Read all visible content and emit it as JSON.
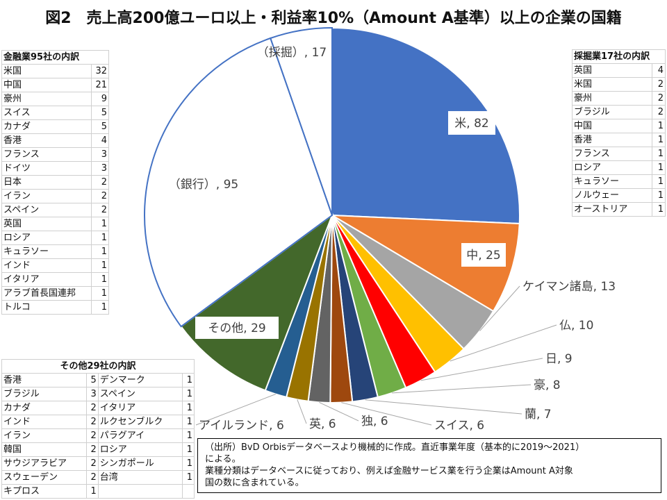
{
  "title": "図2　売上高200億ユーロ以上・利益率10%（Amount A基準）以上の企業の国籍",
  "chart_data": {
    "type": "pie",
    "slices": [
      {
        "label": "米",
        "value": 82,
        "color": "#4472C4"
      },
      {
        "label": "中",
        "value": 25,
        "color": "#ED7D31"
      },
      {
        "label": "ケイマン諸島",
        "value": 13,
        "color": "#A5A5A5"
      },
      {
        "label": "仏",
        "value": 10,
        "color": "#FFC000"
      },
      {
        "label": "日",
        "value": 9,
        "color": "#FF0000"
      },
      {
        "label": "豪",
        "value": 8,
        "color": "#70AD47"
      },
      {
        "label": "蘭",
        "value": 7,
        "color": "#264478"
      },
      {
        "label": "スイス",
        "value": 6,
        "color": "#9E480E"
      },
      {
        "label": "独",
        "value": 6,
        "color": "#636363"
      },
      {
        "label": "英",
        "value": 6,
        "color": "#997300"
      },
      {
        "label": "アイルランド",
        "value": 6,
        "color": "#255E91"
      },
      {
        "label": "その他",
        "value": 29,
        "color": "#43682B"
      },
      {
        "label": "（銀行）",
        "value": 95,
        "color": "#FFFFFF"
      },
      {
        "label": "（採掘）",
        "value": 17,
        "color": "#FFFFFF"
      }
    ]
  },
  "finance_table": {
    "header": "金融業95社の内訳",
    "rows": [
      [
        "米国",
        "32"
      ],
      [
        "中国",
        "21"
      ],
      [
        "豪州",
        "9"
      ],
      [
        "スイス",
        "5"
      ],
      [
        "カナダ",
        "5"
      ],
      [
        "香港",
        "4"
      ],
      [
        "フランス",
        "3"
      ],
      [
        "ドイツ",
        "3"
      ],
      [
        "日本",
        "2"
      ],
      [
        "イラン",
        "2"
      ],
      [
        "スペイン",
        "2"
      ],
      [
        "英国",
        "1"
      ],
      [
        "ロシア",
        "1"
      ],
      [
        "キュラソー",
        "1"
      ],
      [
        "インド",
        "1"
      ],
      [
        "イタリア",
        "1"
      ],
      [
        "アラブ首長国連邦",
        "1"
      ],
      [
        "トルコ",
        "1"
      ]
    ]
  },
  "mining_table": {
    "header": "採掘業17社の内訳",
    "rows": [
      [
        "英国",
        "4"
      ],
      [
        "米国",
        "2"
      ],
      [
        "豪州",
        "2"
      ],
      [
        "ブラジル",
        "2"
      ],
      [
        "中国",
        "1"
      ],
      [
        "香港",
        "1"
      ],
      [
        "フランス",
        "1"
      ],
      [
        "ロシア",
        "1"
      ],
      [
        "キュラソー",
        "1"
      ],
      [
        "ノルウェー",
        "1"
      ],
      [
        "オーストリア",
        "1"
      ]
    ]
  },
  "other_table": {
    "header": "その他29社の内訳",
    "rows": [
      [
        "香港",
        "5",
        "デンマーク",
        "1"
      ],
      [
        "ブラジル",
        "3",
        "スペイン",
        "1"
      ],
      [
        "カナダ",
        "2",
        "イタリア",
        "1"
      ],
      [
        "インド",
        "2",
        "ルクセンブルク",
        "1"
      ],
      [
        "イラン",
        "2",
        "パラグアイ",
        "1"
      ],
      [
        "韓国",
        "2",
        "ロシア",
        "1"
      ],
      [
        "サウジアラビア",
        "2",
        "シンガポール",
        "1"
      ],
      [
        "スウェーデン",
        "2",
        "台湾",
        "1"
      ],
      [
        "キプロス",
        "1",
        "",
        ""
      ]
    ]
  },
  "note": {
    "line1": "（出所）BvD Orbisデータベースより機械的に作成。直近事業年度（基本的に2019～2021）",
    "line2": "による。",
    "line3": "業種分類はデータベースに従っており、例えば金融サービス業を行う企業はAmount A対象",
    "line4": "国の数に含まれている。"
  }
}
